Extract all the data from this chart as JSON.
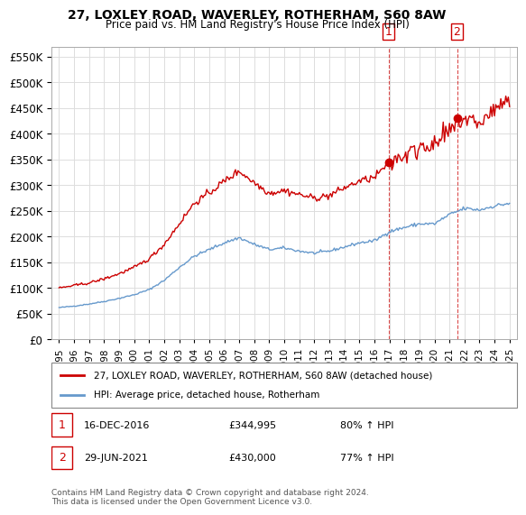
{
  "title": "27, LOXLEY ROAD, WAVERLEY, ROTHERHAM, S60 8AW",
  "subtitle": "Price paid vs. HM Land Registry's House Price Index (HPI)",
  "legend_label_red": "27, LOXLEY ROAD, WAVERLEY, ROTHERHAM, S60 8AW (detached house)",
  "legend_label_blue": "HPI: Average price, detached house, Rotherham",
  "annotation1_label": "1",
  "annotation1_date": "16-DEC-2016",
  "annotation1_price": "£344,995",
  "annotation1_pct": "80% ↑ HPI",
  "annotation2_label": "2",
  "annotation2_date": "29-JUN-2021",
  "annotation2_price": "£430,000",
  "annotation2_pct": "77% ↑ HPI",
  "footer": "Contains HM Land Registry data © Crown copyright and database right 2024.\nThis data is licensed under the Open Government Licence v3.0.",
  "red_color": "#cc0000",
  "blue_color": "#6699cc",
  "annotation_color": "#cc0000",
  "background_color": "#ffffff",
  "grid_color": "#dddddd",
  "ylim": [
    0,
    570000
  ],
  "yticks": [
    0,
    50000,
    100000,
    150000,
    200000,
    250000,
    300000,
    350000,
    400000,
    450000,
    500000,
    550000
  ],
  "xlim_start": 1994.5,
  "xlim_end": 2025.5
}
